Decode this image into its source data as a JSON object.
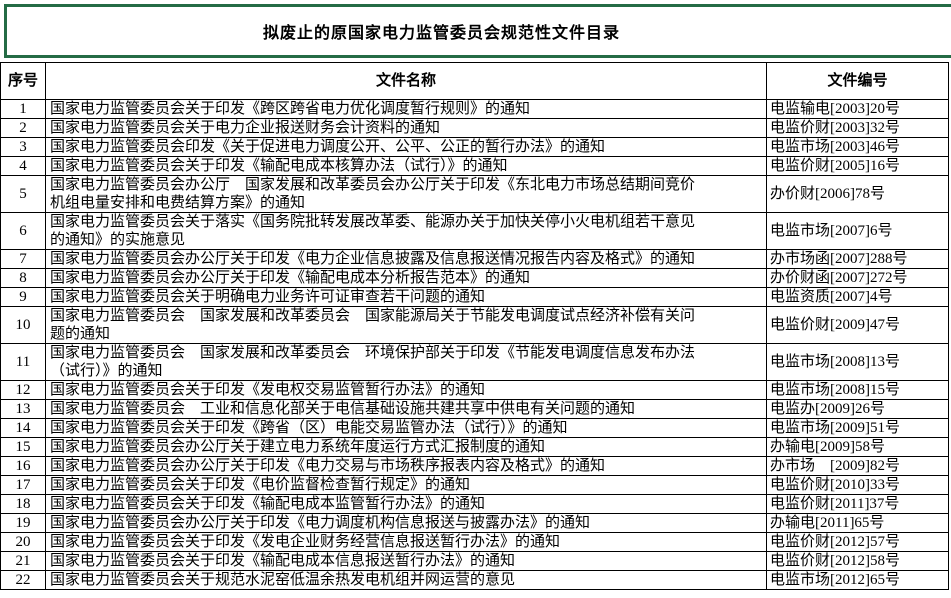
{
  "title": "拟废止的原国家电力监管委员会规范性文件目录",
  "colors": {
    "title_border_green": "#246b45",
    "table_border": "#000000",
    "text": "#000000",
    "background": "#ffffff"
  },
  "table": {
    "headers": [
      "序号",
      "文件名称",
      "文件编号"
    ],
    "rows": [
      {
        "no": "1",
        "name": "国家电力监管委员会关于印发《跨区跨省电力优化调度暂行规则》的通知",
        "code": "电监输电[2003]20号"
      },
      {
        "no": "2",
        "name": "国家电力监管委员会关于电力企业报送财务会计资料的通知",
        "code": "电监价财[2003]32号"
      },
      {
        "no": "3",
        "name": "国家电力监管委员会印发《关于促进电力调度公开、公平、公正的暂行办法》的通知",
        "code": "电监市场[2003]46号"
      },
      {
        "no": "4",
        "name": "国家电力监管委员会关于印发《输配电成本核算办法（试行）》的通知",
        "code": "电监价财[2005]16号"
      },
      {
        "no": "5",
        "name": "国家电力监管委员会办公厅　国家发展和改革委员会办公厅关于印发《东北电力市场总结期间竞价机组电量安排和电费结算方案》的通知",
        "code": "办价财[2006]78号"
      },
      {
        "no": "6",
        "name": "国家电力监管委员会关于落实《国务院批转发展改革委、能源办关于加快关停小火电机组若干意见的通知》的实施意见",
        "code": "电监市场[2007]6号"
      },
      {
        "no": "7",
        "name": "国家电力监管委员会办公厅关于印发《电力企业信息披露及信息报送情况报告内容及格式》的通知",
        "code": "办市场函[2007]288号"
      },
      {
        "no": "8",
        "name": "国家电力监管委员会办公厅关于印发《输配电成本分析报告范本》的通知",
        "code": "办价财函[2007]272号"
      },
      {
        "no": "9",
        "name": "国家电力监管委员会关于明确电力业务许可证审查若干问题的通知",
        "code": "电监资质[2007]4号"
      },
      {
        "no": "10",
        "name": "国家电力监管委员会　国家发展和改革委员会　国家能源局关于节能发电调度试点经济补偿有关问题的通知",
        "code": "电监价财[2009]47号"
      },
      {
        "no": "11",
        "name": "国家电力监管委员会　国家发展和改革委员会　环境保护部关于印发《节能发电调度信息发布办法（试行）》的通知",
        "code": "电监市场[2008]13号"
      },
      {
        "no": "12",
        "name": "国家电力监管委员会关于印发《发电权交易监管暂行办法》的通知",
        "code": "电监市场[2008]15号"
      },
      {
        "no": "13",
        "name": "国家电力监管委员会　工业和信息化部关于电信基础设施共建共享中供电有关问题的通知",
        "code": "电监办[2009]26号"
      },
      {
        "no": "14",
        "name": "国家电力监管委员会关于印发《跨省（区）电能交易监管办法（试行）》的通知",
        "code": "电监市场[2009]51号"
      },
      {
        "no": "15",
        "name": "国家电力监管委员会办公厅关于建立电力系统年度运行方式汇报制度的通知",
        "code": "办输电[2009]58号"
      },
      {
        "no": "16",
        "name": "国家电力监管委员会办公厅关于印发《电力交易与市场秩序报表内容及格式》的通知",
        "code": "办市场　[2009]82号"
      },
      {
        "no": "17",
        "name": "国家电力监管委员会关于印发《电价监督检查暂行规定》的通知",
        "code": "电监价财[2010]33号"
      },
      {
        "no": "18",
        "name": "国家电力监管委员会关于印发《输配电成本监管暂行办法》的通知",
        "code": "电监价财[2011]37号"
      },
      {
        "no": "19",
        "name": "国家电力监管委员会办公厅关于印发《电力调度机构信息报送与披露办法》的通知",
        "code": "办输电[2011]65号"
      },
      {
        "no": "20",
        "name": "国家电力监管委员会关于印发《发电企业财务经营信息报送暂行办法》的通知",
        "code": "电监价财[2012]57号"
      },
      {
        "no": "21",
        "name": "国家电力监管委员会关于印发《输配电成本信息报送暂行办法》的通知",
        "code": "电监价财[2012]58号"
      },
      {
        "no": "22",
        "name": "国家电力监管委员会关于规范水泥窑低温余热发电机组并网运营的意见",
        "code": "电监市场[2012]65号"
      }
    ]
  }
}
